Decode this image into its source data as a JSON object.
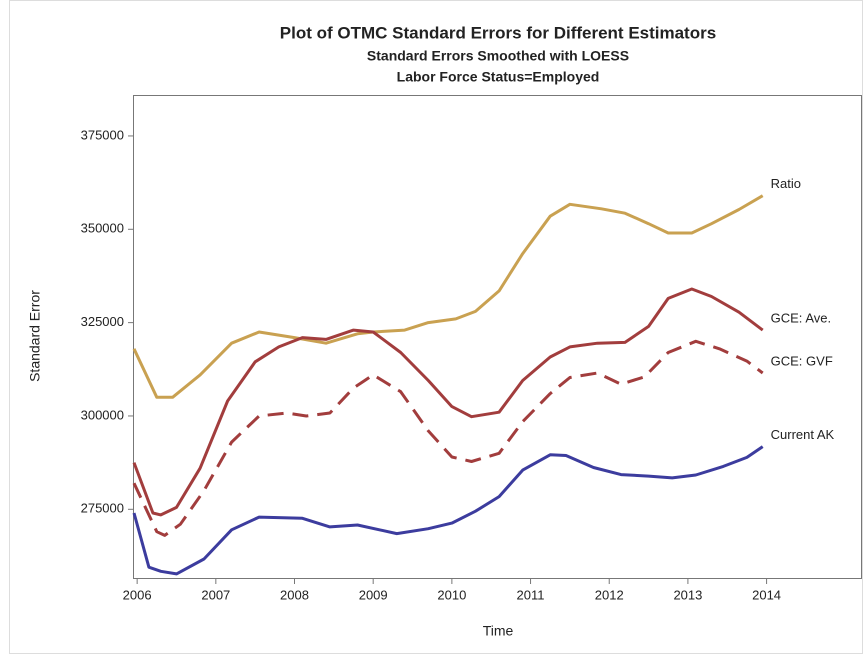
{
  "chart_data": {
    "type": "line",
    "title": "Plot of OTMC Standard Errors for Different Estimators",
    "subtitle": "Standard Errors Smoothed with LOESS",
    "subtitle2": "Labor Force Status=Employed",
    "x_label": "Time",
    "y_label": "Standard Error",
    "xlim": [
      2005.96,
      2015.2
    ],
    "xticks": [
      2006,
      2007,
      2008,
      2009,
      2010,
      2011,
      2012,
      2013,
      2014
    ],
    "ylim": [
      256600,
      385700
    ],
    "yticks": [
      275000,
      300000,
      325000,
      350000,
      375000
    ],
    "grid": false,
    "series": [
      {
        "name": "Ratio",
        "color": "#c9a151",
        "linestyle": "solid",
        "x": [
          2005.96,
          2006.25,
          2006.45,
          2006.8,
          2007.2,
          2007.55,
          2008.0,
          2008.4,
          2008.8,
          2009.0,
          2009.4,
          2009.7,
          2010.05,
          2010.3,
          2010.6,
          2010.9,
          2011.25,
          2011.5,
          2011.9,
          2012.2,
          2012.5,
          2012.75,
          2013.05,
          2013.3,
          2013.65,
          2013.95
        ],
        "values": [
          318000,
          305000,
          305000,
          311000,
          319500,
          322500,
          321000,
          319500,
          322000,
          322500,
          323000,
          325000,
          326000,
          328000,
          333500,
          343500,
          353500,
          356700,
          355500,
          354300,
          351500,
          349000,
          349000,
          351500,
          355300,
          359000
        ]
      },
      {
        "name": "GCE: Ave.",
        "color": "#a23d3d",
        "linestyle": "solid",
        "x": [
          2005.96,
          2006.2,
          2006.3,
          2006.5,
          2006.8,
          2007.15,
          2007.5,
          2007.8,
          2008.1,
          2008.4,
          2008.75,
          2009.0,
          2009.35,
          2009.7,
          2010.0,
          2010.25,
          2010.6,
          2010.9,
          2011.25,
          2011.5,
          2011.85,
          2012.2,
          2012.5,
          2012.75,
          2013.05,
          2013.3,
          2013.65,
          2013.95
        ],
        "values": [
          287500,
          274000,
          273500,
          275500,
          286000,
          304000,
          314500,
          318500,
          321000,
          320500,
          323000,
          322500,
          317000,
          309500,
          302500,
          299800,
          301000,
          309500,
          315800,
          318500,
          319500,
          319700,
          324000,
          331500,
          334000,
          332000,
          327800,
          323000
        ]
      },
      {
        "name": "GCE: GVF",
        "color": "#a23d3d",
        "linestyle": "dashed",
        "x": [
          2005.96,
          2006.25,
          2006.35,
          2006.55,
          2006.85,
          2007.2,
          2007.55,
          2007.9,
          2008.15,
          2008.45,
          2008.75,
          2009.0,
          2009.35,
          2009.7,
          2010.0,
          2010.25,
          2010.6,
          2010.9,
          2011.25,
          2011.5,
          2011.85,
          2012.15,
          2012.45,
          2012.75,
          2013.1,
          2013.4,
          2013.75,
          2013.95
        ],
        "values": [
          282000,
          269000,
          268000,
          271000,
          280000,
          293000,
          300000,
          300800,
          300000,
          300800,
          307500,
          311000,
          306500,
          296000,
          289000,
          287800,
          290000,
          298500,
          306000,
          310300,
          311500,
          308500,
          310500,
          317000,
          320000,
          318000,
          314700,
          311500
        ]
      },
      {
        "name": "Current AK",
        "color": "#3c3c9e",
        "linestyle": "solid",
        "x": [
          2005.96,
          2006.15,
          2006.3,
          2006.5,
          2006.85,
          2007.2,
          2007.55,
          2008.1,
          2008.45,
          2008.8,
          2009.3,
          2009.7,
          2010.0,
          2010.3,
          2010.6,
          2010.9,
          2011.25,
          2011.45,
          2011.8,
          2012.15,
          2012.5,
          2012.8,
          2013.1,
          2013.45,
          2013.75,
          2013.95
        ],
        "values": [
          274000,
          259500,
          258400,
          257700,
          261700,
          269500,
          272900,
          272600,
          270300,
          270800,
          268500,
          269800,
          271300,
          274500,
          278400,
          285500,
          289600,
          289400,
          286200,
          284300,
          283900,
          283400,
          284200,
          286500,
          288900,
          291800
        ]
      }
    ]
  }
}
